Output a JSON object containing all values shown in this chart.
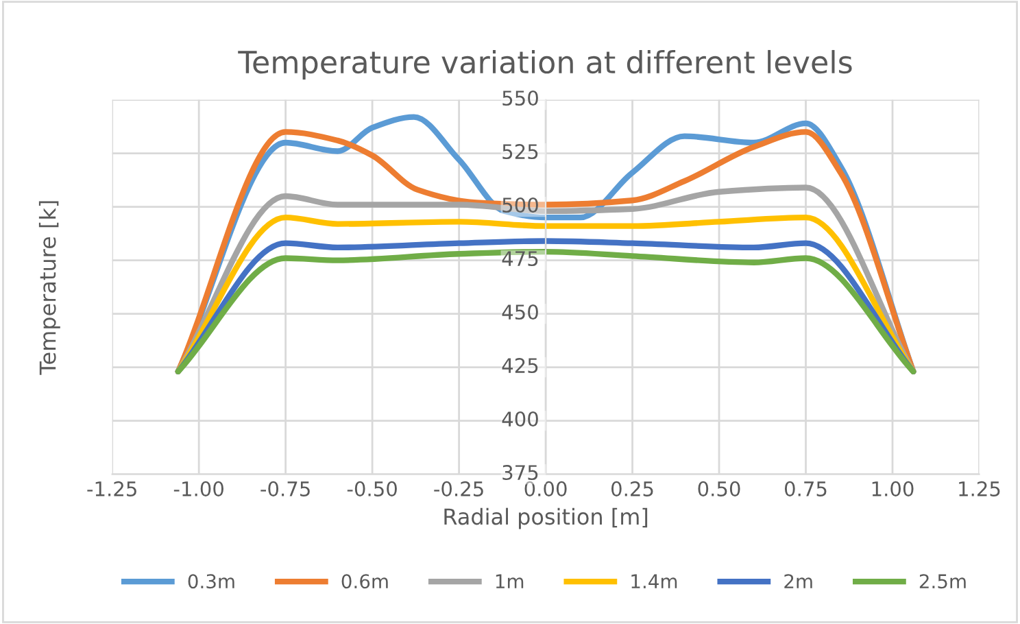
{
  "chart_data": {
    "type": "line",
    "title": "Temperature variation at different levels",
    "xlabel": "Radial position [m]",
    "ylabel": "Temperature [k]",
    "xlim": [
      -1.25,
      1.25
    ],
    "xticks": [
      {
        "value": -1.25,
        "label": "-1.25"
      },
      {
        "value": -1.0,
        "label": "-1.00"
      },
      {
        "value": -0.75,
        "label": "-0.75"
      },
      {
        "value": -0.5,
        "label": "-0.50"
      },
      {
        "value": -0.25,
        "label": "-0.25"
      },
      {
        "value": 0,
        "label": "0.00"
      },
      {
        "value": 0.25,
        "label": "0.25"
      },
      {
        "value": 0.5,
        "label": "0.50"
      },
      {
        "value": 0.75,
        "label": "0.75"
      },
      {
        "value": 1.0,
        "label": "1.00"
      },
      {
        "value": 1.25,
        "label": "1.25"
      }
    ],
    "ylim": [
      375,
      550
    ],
    "yticks": [
      375,
      400,
      425,
      450,
      475,
      500,
      525,
      550
    ],
    "grid": true,
    "legend": "bottom",
    "marker": "none",
    "line_style": "solid",
    "series": [
      {
        "name": "0.3m",
        "color": "#5b9bd5",
        "x": [
          -1.06,
          -0.75,
          -0.6,
          -0.5,
          -0.38,
          -0.25,
          -0.12,
          0,
          0.1,
          0.25,
          0.4,
          0.6,
          0.75,
          0.85,
          1.06
        ],
        "values": [
          423,
          530,
          526,
          537,
          542,
          522,
          498,
          495,
          495,
          516,
          533,
          530,
          539,
          519,
          423
        ]
      },
      {
        "name": "0.6m",
        "color": "#ed7d31",
        "x": [
          -1.06,
          -0.75,
          -0.6,
          -0.5,
          -0.37,
          -0.2,
          0,
          0.25,
          0.4,
          0.6,
          0.75,
          0.85,
          1.06
        ],
        "values": [
          423,
          535,
          531,
          524,
          508,
          502,
          501,
          503,
          512,
          528,
          535,
          516,
          423
        ]
      },
      {
        "name": "1m",
        "color": "#a5a5a5",
        "x": [
          -1.06,
          -0.75,
          -0.6,
          -0.25,
          0,
          0.25,
          0.5,
          0.75,
          1.06
        ],
        "values": [
          423,
          505,
          501,
          501,
          498,
          499,
          507,
          509,
          423
        ]
      },
      {
        "name": "1.4m",
        "color": "#ffc000",
        "x": [
          -1.06,
          -0.75,
          -0.6,
          -0.25,
          0,
          0.25,
          0.5,
          0.75,
          1.06
        ],
        "values": [
          423,
          495,
          492,
          493,
          491,
          491,
          493,
          495,
          423
        ]
      },
      {
        "name": "2m",
        "color": "#4472c4",
        "x": [
          -1.06,
          -0.75,
          -0.6,
          -0.25,
          0,
          0.25,
          0.6,
          0.75,
          1.06
        ],
        "values": [
          423,
          483,
          481,
          483,
          484,
          483,
          481,
          483,
          423
        ]
      },
      {
        "name": "2.5m",
        "color": "#70ad47",
        "x": [
          -1.06,
          -0.75,
          -0.6,
          -0.25,
          0,
          0.25,
          0.6,
          0.75,
          1.06
        ],
        "values": [
          423,
          476,
          475,
          478,
          479,
          477,
          474,
          476,
          423
        ]
      }
    ]
  }
}
